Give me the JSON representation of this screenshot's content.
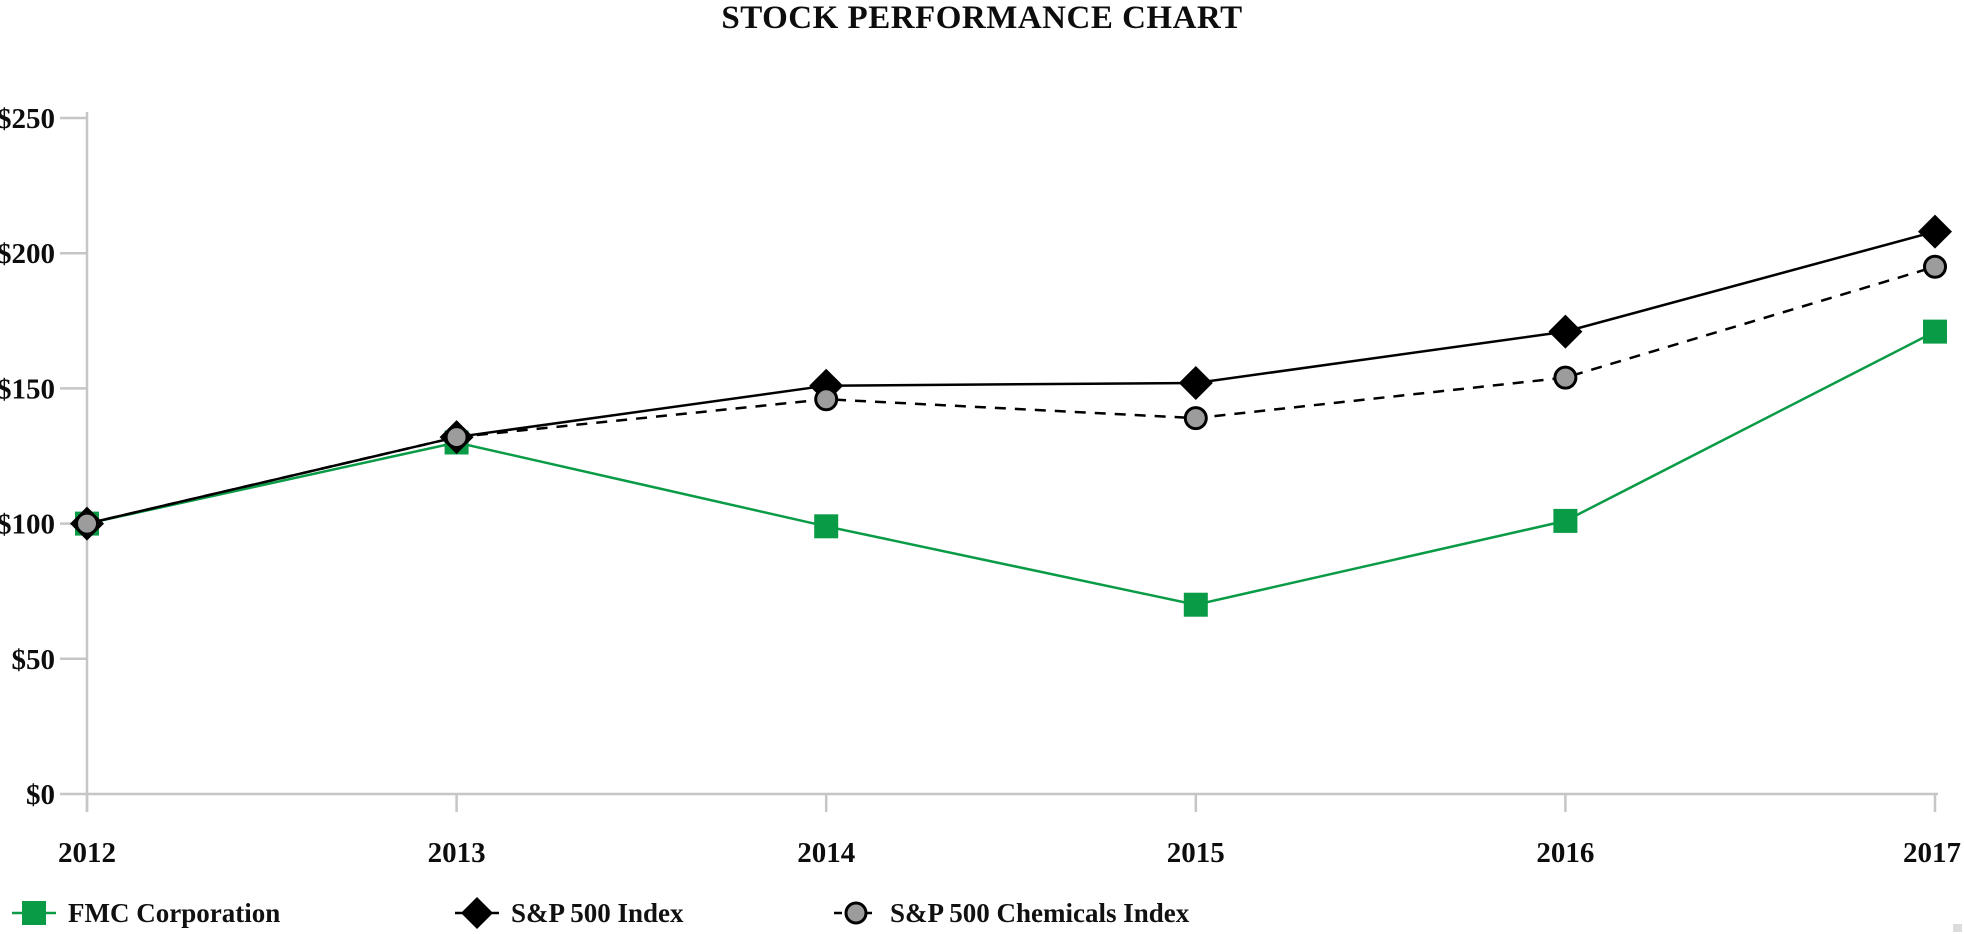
{
  "chart_data": {
    "type": "line",
    "title": "STOCK PERFORMANCE CHART",
    "x": [
      2012,
      2013,
      2014,
      2015,
      2016,
      2017
    ],
    "x_ticks": [
      "2012",
      "2013",
      "2014",
      "2015",
      "2016",
      "2017"
    ],
    "y_ticks": [
      "$0",
      "$50",
      "$100",
      "$150",
      "$200",
      "$250"
    ],
    "y_tick_values": [
      0,
      50,
      100,
      150,
      200,
      250
    ],
    "ylim": [
      0,
      250
    ],
    "grid": "off",
    "legend_position": "bottom",
    "series": [
      {
        "name": "FMC Corporation",
        "values": [
          100,
          130,
          99,
          70,
          101,
          171
        ],
        "color": "#0a9b46",
        "marker": "square",
        "marker_fill": "#0a9b46",
        "line_style": "solid"
      },
      {
        "name": "S&P 500 Index",
        "values": [
          100,
          132,
          151,
          152,
          171,
          208
        ],
        "color": "#000000",
        "marker": "diamond",
        "marker_fill": "#000000",
        "line_style": "solid"
      },
      {
        "name": "S&P 500 Chemicals Index",
        "values": [
          100,
          132,
          146,
          139,
          154,
          195
        ],
        "color": "#000000",
        "marker": "circle",
        "marker_fill": "#9c9c9c",
        "line_style": "dashed"
      }
    ],
    "axis_color": "#c6c6c6",
    "text_color": "#0d0d0d"
  }
}
